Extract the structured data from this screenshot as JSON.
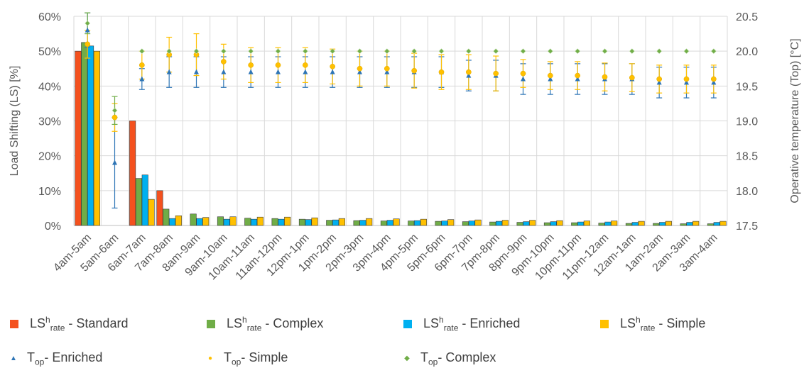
{
  "chart_data": {
    "type": "bar",
    "categories": [
      "4am-5am",
      "5am-6am",
      "6am-7am",
      "7am-8am",
      "8am-9am",
      "9am-10am",
      "10am-11am",
      "11am-12pm",
      "12pm-1pm",
      "1pm-2pm",
      "2pm-3pm",
      "3pm-4pm",
      "4pm-5pm",
      "5pm-6pm",
      "6pm-7pm",
      "7pm-8pm",
      "8pm-9pm",
      "9pm-10pm",
      "10pm-11pm",
      "11pm-12am",
      "12am-1am",
      "1am-2am",
      "2am-3am",
      "3am-4am"
    ],
    "ylabel": "Load Shifting (LS) [%]",
    "y2label": "Operative temperature (Top) [°C]",
    "ylim": [
      0,
      60
    ],
    "y2lim": [
      17.5,
      20.5
    ],
    "yticks": [
      "0%",
      "10%",
      "20%",
      "30%",
      "40%",
      "50%",
      "60%"
    ],
    "y2ticks": [
      "17.5",
      "18.0",
      "18.5",
      "19.0",
      "19.5",
      "20.0",
      "20.5"
    ],
    "grid": true,
    "legend_position": "bottom",
    "bar_series": [
      {
        "name_main": "LS",
        "name_sup": "h",
        "name_sub": "rate",
        "name_rest": " - Standard",
        "color": "#f4511e",
        "values": [
          50,
          0,
          30,
          10,
          0,
          0,
          0,
          0,
          0,
          0,
          0,
          0,
          0,
          0,
          0,
          0,
          0,
          0,
          0,
          0,
          0,
          0,
          0,
          0
        ]
      },
      {
        "name_main": "LS",
        "name_sup": "h",
        "name_sub": "rate",
        "name_rest": " - Complex",
        "color": "#70ad47",
        "values": [
          52.5,
          0,
          13.5,
          4.7,
          3.3,
          2.5,
          2.1,
          2.0,
          1.8,
          1.5,
          1.4,
          1.3,
          1.3,
          1.2,
          1.1,
          1.0,
          0.9,
          0.8,
          0.8,
          0.7,
          0.6,
          0.6,
          0.5,
          0.5
        ]
      },
      {
        "name_main": "LS",
        "name_sup": "h",
        "name_sub": "rate",
        "name_rest": " - Enriched",
        "color": "#00b0f0",
        "values": [
          51.5,
          0,
          14.5,
          2.0,
          2.0,
          1.8,
          1.8,
          1.8,
          1.7,
          1.6,
          1.5,
          1.5,
          1.4,
          1.3,
          1.3,
          1.2,
          1.1,
          1.1,
          1.0,
          1.0,
          0.9,
          0.9,
          0.9,
          0.9
        ]
      },
      {
        "name_main": "LS",
        "name_sup": "h",
        "name_sub": "rate",
        "name_rest": " - Simple",
        "color": "#ffc000",
        "values": [
          50,
          0,
          7.5,
          2.8,
          2.3,
          2.5,
          2.4,
          2.4,
          2.2,
          2.0,
          2.0,
          1.9,
          1.8,
          1.7,
          1.6,
          1.5,
          1.5,
          1.4,
          1.3,
          1.3,
          1.2,
          1.2,
          1.2,
          1.2
        ]
      }
    ],
    "point_series": [
      {
        "name_main": "T",
        "name_sub": "op",
        "name_rest": "- Enriched",
        "color": "#2e75b6",
        "marker": "triangle",
        "values": [
          20.3,
          18.4,
          19.6,
          19.7,
          19.7,
          19.7,
          19.7,
          19.7,
          19.7,
          19.7,
          19.7,
          19.7,
          19.7,
          19.7,
          19.65,
          19.65,
          19.6,
          19.6,
          19.6,
          19.6,
          19.6,
          19.55,
          19.55,
          19.55
        ],
        "error": [
          0.25,
          0.65,
          0.15,
          0.22,
          0.22,
          0.22,
          0.22,
          0.22,
          0.22,
          0.22,
          0.22,
          0.22,
          0.22,
          0.22,
          0.22,
          0.22,
          0.22,
          0.22,
          0.22,
          0.22,
          0.22,
          0.22,
          0.22,
          0.22
        ]
      },
      {
        "name_main": "T",
        "name_sub": "op",
        "name_rest": "- Simple",
        "color": "#ffc000",
        "marker": "circle",
        "values": [
          20.1,
          19.05,
          19.8,
          19.95,
          19.95,
          19.85,
          19.8,
          19.8,
          19.8,
          19.78,
          19.75,
          19.75,
          19.72,
          19.7,
          19.7,
          19.68,
          19.68,
          19.65,
          19.65,
          19.63,
          19.62,
          19.6,
          19.6,
          19.6
        ],
        "error": [
          0.2,
          0.2,
          0.2,
          0.25,
          0.3,
          0.25,
          0.25,
          0.25,
          0.25,
          0.25,
          0.25,
          0.25,
          0.25,
          0.25,
          0.25,
          0.25,
          0.2,
          0.2,
          0.2,
          0.2,
          0.2,
          0.2,
          0.2,
          0.2
        ]
      },
      {
        "name_main": "T",
        "name_sub": "op",
        "name_rest": "- Complex",
        "color": "#70ad47",
        "marker": "diamond",
        "values": [
          20.4,
          19.15,
          20.0,
          20.0,
          20.0,
          20.0,
          20.0,
          20.0,
          20.0,
          20.0,
          20.0,
          20.0,
          20.0,
          20.0,
          20.0,
          20.0,
          20.0,
          20.0,
          20.0,
          20.0,
          20.0,
          20.0,
          20.0,
          20.0
        ],
        "error": [
          0.15,
          0.2,
          0,
          0,
          0,
          0,
          0,
          0,
          0,
          0,
          0,
          0,
          0,
          0,
          0,
          0,
          0,
          0,
          0,
          0,
          0,
          0,
          0,
          0
        ]
      }
    ]
  }
}
